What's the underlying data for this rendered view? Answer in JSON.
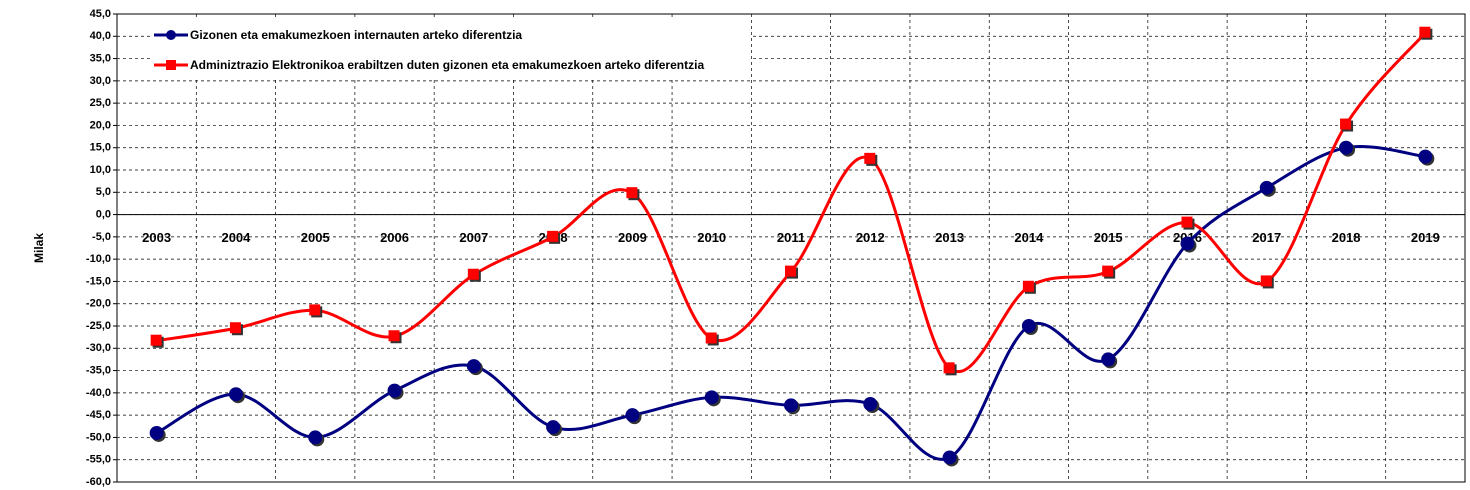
{
  "chart_data": {
    "type": "line",
    "y_label": "Milak",
    "categories": [
      "2003",
      "2004",
      "2005",
      "2006",
      "2007",
      "2008",
      "2009",
      "2010",
      "2011",
      "2012",
      "2013",
      "2014",
      "2015",
      "2016",
      "2017",
      "2018",
      "2019"
    ],
    "series": [
      {
        "name": "Gizonen eta emakumezkoen internauten arteko diferentzia",
        "color": "#000080",
        "marker": "circle",
        "values": [
          -49,
          -40.3,
          -50,
          -39.5,
          -34,
          -47.7,
          -45,
          -41,
          -42.8,
          -42.5,
          -54.5,
          -25,
          -32.5,
          -6.5,
          6,
          15,
          13
        ]
      },
      {
        "name": "Adminiztrazio Elektronikoa erabiltzen duten gizonen eta emakumezkoen arteko diferentzia",
        "color": "#ff0000",
        "marker": "square",
        "values": [
          -28.3,
          -25.5,
          -21.5,
          -27.3,
          -13.5,
          -5,
          4.8,
          -27.8,
          -12.8,
          12.5,
          -34.5,
          -16.2,
          -12.8,
          -1.8,
          -15,
          20.2,
          40.8
        ]
      }
    ],
    "ylim": [
      -60,
      45
    ],
    "yticks": [
      {
        "value": 45,
        "label": "45,0"
      },
      {
        "value": 40,
        "label": "40,0"
      },
      {
        "value": 35,
        "label": "35,0"
      },
      {
        "value": 30,
        "label": "30,0"
      },
      {
        "value": 25,
        "label": "25,0"
      },
      {
        "value": 20,
        "label": "20,0"
      },
      {
        "value": 15,
        "label": "15,0"
      },
      {
        "value": 10,
        "label": "10,0"
      },
      {
        "value": 5,
        "label": "5,0"
      },
      {
        "value": 0,
        "label": "0,0"
      },
      {
        "value": -5,
        "label": "-5,0"
      },
      {
        "value": -10,
        "label": "-10,0"
      },
      {
        "value": -15,
        "label": "-15,0"
      },
      {
        "value": -20,
        "label": "-20,0"
      },
      {
        "value": -25,
        "label": "-25,0"
      },
      {
        "value": -30,
        "label": "-30,0"
      },
      {
        "value": -35,
        "label": "-35,0"
      },
      {
        "value": -40,
        "label": "-40,0"
      },
      {
        "value": -45,
        "label": "-45,0"
      },
      {
        "value": -50,
        "label": "-50,0"
      },
      {
        "value": -55,
        "label": "-55,0"
      },
      {
        "value": -60,
        "label": "-60,0"
      }
    ],
    "grid": true,
    "smooth": true,
    "legend": "top-left"
  }
}
